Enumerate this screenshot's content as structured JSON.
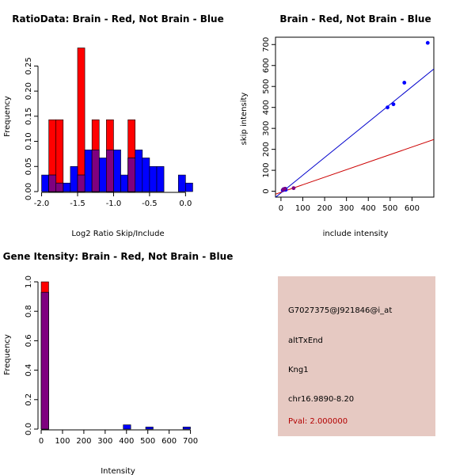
{
  "colors": {
    "brain": "#ff0000",
    "not_brain": "#0000ff",
    "overlap": "#7f007f",
    "fit_line_blue": "#0000cc",
    "fit_line_red": "#cc0000",
    "panel_bg": "#e6c9c2",
    "pval_text": "#b30000"
  },
  "info_panel": {
    "probe_id": "G7027375@J921846@i_at",
    "event_type": "altTxEnd",
    "gene": "Kng1",
    "location": "chr16.9890-8.20",
    "pval": "Pval: 2.000000"
  },
  "chart_data": [
    {
      "id": "ratio-hist",
      "type": "bar",
      "title": "RatioData: Brain - Red, Not Brain - Blue",
      "xlabel": "Log2 Ratio Skip/Include",
      "ylabel": "Frequency",
      "xlim": [
        -2.05,
        0.15
      ],
      "ylim": [
        0,
        0.29
      ],
      "xticks": [
        -2.0,
        -1.5,
        -1.0,
        -0.5,
        0.0
      ],
      "xtick_labels": [
        "-2.0",
        "-1.5",
        "-1.0",
        "-0.5",
        "0.0"
      ],
      "yticks": [
        0.0,
        0.05,
        0.1,
        0.15,
        0.2,
        0.25
      ],
      "ytick_labels": [
        "0.00",
        "0.05",
        "0.10",
        "0.15",
        "0.20",
        "0.25"
      ],
      "series": [
        {
          "name": "Brain",
          "bins": [
            {
              "x0": -1.9,
              "x1": -1.8,
              "value": 0.143
            },
            {
              "x0": -1.8,
              "x1": -1.7,
              "value": 0.143
            },
            {
              "x0": -1.5,
              "x1": -1.4,
              "value": 0.286
            },
            {
              "x0": -1.3,
              "x1": -1.2,
              "value": 0.143
            },
            {
              "x0": -1.1,
              "x1": -1.0,
              "value": 0.143
            },
            {
              "x0": -0.8,
              "x1": -0.7,
              "value": 0.143
            }
          ]
        },
        {
          "name": "Not Brain",
          "bins": [
            {
              "x0": -2.0,
              "x1": -1.9,
              "value": 0.033
            },
            {
              "x0": -1.9,
              "x1": -1.8,
              "value": 0.033
            },
            {
              "x0": -1.8,
              "x1": -1.7,
              "value": 0.017
            },
            {
              "x0": -1.7,
              "x1": -1.6,
              "value": 0.017
            },
            {
              "x0": -1.6,
              "x1": -1.5,
              "value": 0.05
            },
            {
              "x0": -1.5,
              "x1": -1.4,
              "value": 0.033
            },
            {
              "x0": -1.4,
              "x1": -1.3,
              "value": 0.083
            },
            {
              "x0": -1.3,
              "x1": -1.2,
              "value": 0.083
            },
            {
              "x0": -1.2,
              "x1": -1.1,
              "value": 0.067
            },
            {
              "x0": -1.1,
              "x1": -1.0,
              "value": 0.083
            },
            {
              "x0": -1.0,
              "x1": -0.9,
              "value": 0.083
            },
            {
              "x0": -0.9,
              "x1": -0.8,
              "value": 0.033
            },
            {
              "x0": -0.8,
              "x1": -0.7,
              "value": 0.067
            },
            {
              "x0": -0.7,
              "x1": -0.6,
              "value": 0.083
            },
            {
              "x0": -0.6,
              "x1": -0.5,
              "value": 0.067
            },
            {
              "x0": -0.5,
              "x1": -0.4,
              "value": 0.05
            },
            {
              "x0": -0.4,
              "x1": -0.3,
              "value": 0.05
            },
            {
              "x0": -0.1,
              "x1": 0.0,
              "value": 0.033
            },
            {
              "x0": 0.0,
              "x1": 0.1,
              "value": 0.017
            }
          ]
        }
      ]
    },
    {
      "id": "scatter",
      "type": "scatter",
      "title": "Brain - Red, Not Brain - Blue",
      "xlabel": "include intensity",
      "ylabel": "skip intensity",
      "xlim": [
        -25,
        700
      ],
      "ylim": [
        -28,
        735
      ],
      "xticks": [
        0,
        100,
        200,
        300,
        400,
        500,
        600
      ],
      "yticks": [
        0,
        100,
        200,
        300,
        400,
        500,
        600,
        700
      ],
      "series": [
        {
          "name": "Brain",
          "points": [
            [
              10,
              8
            ],
            [
              18,
              12
            ],
            [
              58,
              15
            ]
          ]
        },
        {
          "name": "Not Brain",
          "points": [
            [
              8,
              5
            ],
            [
              12,
              10
            ],
            [
              15,
              8
            ],
            [
              20,
              12
            ],
            [
              22,
              7
            ],
            [
              488,
              400
            ],
            [
              515,
              415
            ],
            [
              565,
              518
            ],
            [
              672,
              708
            ]
          ]
        }
      ],
      "fit_lines": [
        {
          "name": "Not Brain fit",
          "slope": 0.845,
          "intercept": -8
        },
        {
          "name": "Brain fit",
          "slope": 0.36,
          "intercept": -5
        }
      ]
    },
    {
      "id": "intensity-hist",
      "type": "bar",
      "title": "Gene Itensity: Brain - Red, Not Brain - Blue",
      "xlabel": "Intensity",
      "ylabel": "Frequency",
      "xlim": [
        -15,
        735
      ],
      "ylim": [
        0,
        1.0
      ],
      "xticks": [
        0,
        100,
        200,
        300,
        400,
        500,
        600,
        700
      ],
      "yticks": [
        0.0,
        0.2,
        0.4,
        0.6,
        0.8,
        1.0
      ],
      "ytick_labels": [
        "0.0",
        "0.2",
        "0.4",
        "0.6",
        "0.8",
        "1.0"
      ],
      "series": [
        {
          "name": "Brain",
          "bins": [
            {
              "x0": 0,
              "x1": 35,
              "value": 1.0
            }
          ]
        },
        {
          "name": "Not Brain",
          "bins": [
            {
              "x0": 0,
              "x1": 35,
              "value": 0.929
            },
            {
              "x0": 385,
              "x1": 420,
              "value": 0.029
            },
            {
              "x0": 490,
              "x1": 525,
              "value": 0.014
            },
            {
              "x0": 665,
              "x1": 700,
              "value": 0.014
            }
          ]
        }
      ]
    }
  ]
}
